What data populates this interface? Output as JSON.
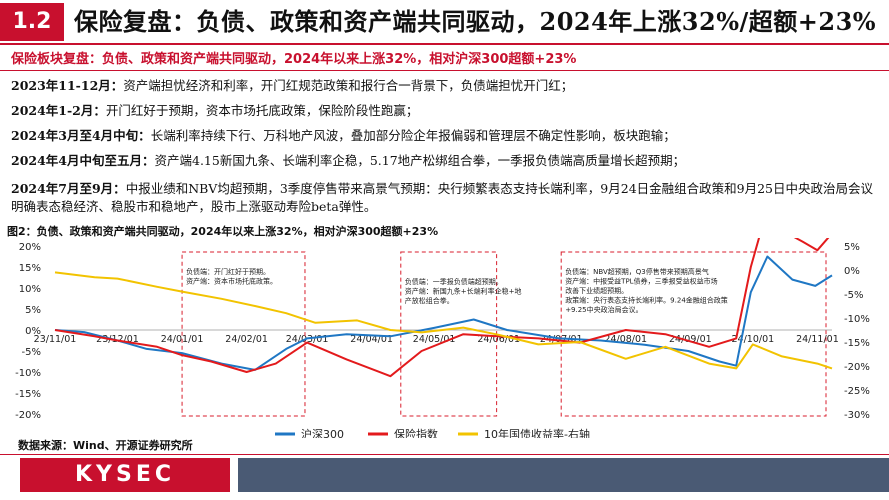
{
  "header": {
    "section_number": "1.2",
    "title": "保险复盘：负债、政策和资产端共同驱动，2024年上涨32%/超额+23%"
  },
  "subtitle": "保险板块复盘：负债、政策和资产端共同驱动，2024年以来上涨32%，相对沪深300超额+23%",
  "paragraphs": [
    {
      "period": "2023年11-12月：",
      "text": "资产端担忧经济和利率，开门红规范政策和报行合一背景下，负债端担忧开门红；"
    },
    {
      "period": "2024年1-2月：",
      "text": "开门红好于预期，资本市场托底政策，保险阶段性跑赢；"
    },
    {
      "period": "2024年3月至4月中旬：",
      "text": "长端利率持续下行、万科地产风波，叠加部分险企年报偏弱和管理层不确定性影响，板块跑输；"
    },
    {
      "period": "2024年4月中旬至五月：",
      "text": "资产端4.15新国九条、长端利率企稳，5.17地产松绑组合拳，一季报负债端高质量增长超预期；"
    },
    {
      "period": "2024年7月至9月：",
      "text": "中报业绩和NBV均超预期，3季度停售带来高景气预期：央行频繁表态支持长端利率，9月24日金融组合政策和9月25日中央政治局会议明确表态稳经济、稳股市和稳地产，股市上涨驱动寿险beta弹性。"
    }
  ],
  "chart_data": {
    "type": "line",
    "title": "图2：负债、政策和资产端共同驱动，2024年以来上涨32%，相对沪深300超额+23%",
    "x_ticks": [
      "23/11/01",
      "23/12/01",
      "24/01/01",
      "24/02/01",
      "24/03/01",
      "24/04/01",
      "24/05/01",
      "24/06/01",
      "24/07/01",
      "24/08/01",
      "24/09/01",
      "24/10/01",
      "24/11/01"
    ],
    "x_range": [
      "2023-11-01",
      "2024-11-08"
    ],
    "left_axis": {
      "min": -20,
      "max": 20,
      "ticks": [
        "20%",
        "15%",
        "10%",
        "5%",
        "0%",
        "-5%",
        "-10%",
        "-15%",
        "-20%"
      ]
    },
    "right_axis": {
      "min": -30,
      "max": 5,
      "ticks": [
        "5%",
        "0%",
        "-5%",
        "-10%",
        "-15%",
        "-20%",
        "-25%",
        "-30%"
      ]
    },
    "series": [
      {
        "name": "沪深300",
        "axis": "left",
        "color": "#1f77c4",
        "points": [
          [
            "2023-11-01",
            0
          ],
          [
            "2023-11-15",
            -0.5
          ],
          [
            "2023-12-01",
            -2.5
          ],
          [
            "2023-12-15",
            -4.5
          ],
          [
            "2024-01-01",
            -5.5
          ],
          [
            "2024-01-20",
            -8
          ],
          [
            "2024-02-05",
            -9.5
          ],
          [
            "2024-02-20",
            -4.5
          ],
          [
            "2024-03-01",
            -2
          ],
          [
            "2024-03-20",
            -1
          ],
          [
            "2024-04-10",
            -1.5
          ],
          [
            "2024-05-01",
            0.5
          ],
          [
            "2024-05-20",
            2.5
          ],
          [
            "2024-06-05",
            0
          ],
          [
            "2024-06-30",
            -2
          ],
          [
            "2024-07-20",
            -2.5
          ],
          [
            "2024-08-10",
            -3.5
          ],
          [
            "2024-08-31",
            -5
          ],
          [
            "2024-09-15",
            -7.5
          ],
          [
            "2024-09-23",
            -8.5
          ],
          [
            "2024-09-30",
            9
          ],
          [
            "2024-10-08",
            17.5
          ],
          [
            "2024-10-20",
            12
          ],
          [
            "2024-10-31",
            10.5
          ],
          [
            "2024-11-08",
            13
          ]
        ]
      },
      {
        "name": "保险指数",
        "axis": "left",
        "color": "#e31a1c",
        "points": [
          [
            "2023-11-01",
            0
          ],
          [
            "2023-11-20",
            -1.5
          ],
          [
            "2023-12-01",
            -2.5
          ],
          [
            "2023-12-20",
            -4
          ],
          [
            "2024-01-01",
            -6
          ],
          [
            "2024-01-15",
            -7.5
          ],
          [
            "2024-02-01",
            -10
          ],
          [
            "2024-02-15",
            -8
          ],
          [
            "2024-03-01",
            -3
          ],
          [
            "2024-03-20",
            -7
          ],
          [
            "2024-04-10",
            -11
          ],
          [
            "2024-04-25",
            -5
          ],
          [
            "2024-05-15",
            -1
          ],
          [
            "2024-05-31",
            -1.5
          ],
          [
            "2024-06-20",
            -2
          ],
          [
            "2024-07-10",
            -3
          ],
          [
            "2024-08-01",
            0
          ],
          [
            "2024-08-20",
            -1
          ],
          [
            "2024-09-10",
            -4
          ],
          [
            "2024-09-23",
            -2
          ],
          [
            "2024-09-30",
            15
          ],
          [
            "2024-10-08",
            29
          ],
          [
            "2024-10-14",
            24
          ],
          [
            "2024-10-25",
            21
          ],
          [
            "2024-11-01",
            19
          ],
          [
            "2024-11-08",
            23
          ]
        ]
      },
      {
        "name": "10年国债收益率-右轴",
        "axis": "right",
        "color": "#f2c300",
        "points": [
          [
            "2023-11-01",
            -0.5
          ],
          [
            "2023-11-20",
            -1.5
          ],
          [
            "2023-12-01",
            -1.8
          ],
          [
            "2023-12-20",
            -3.5
          ],
          [
            "2024-01-01",
            -4.5
          ],
          [
            "2024-01-20",
            -6
          ],
          [
            "2024-02-05",
            -7.5
          ],
          [
            "2024-02-20",
            -9
          ],
          [
            "2024-03-05",
            -11
          ],
          [
            "2024-03-25",
            -10.5
          ],
          [
            "2024-04-10",
            -12.5
          ],
          [
            "2024-04-25",
            -13
          ],
          [
            "2024-05-15",
            -12
          ],
          [
            "2024-06-01",
            -13.5
          ],
          [
            "2024-06-20",
            -15.5
          ],
          [
            "2024-07-10",
            -15
          ],
          [
            "2024-08-01",
            -18.5
          ],
          [
            "2024-08-20",
            -16
          ],
          [
            "2024-09-10",
            -19.5
          ],
          [
            "2024-09-23",
            -20.5
          ],
          [
            "2024-10-01",
            -15.5
          ],
          [
            "2024-10-15",
            -18
          ],
          [
            "2024-11-01",
            -19.5
          ],
          [
            "2024-11-08",
            -20.5
          ]
        ]
      }
    ],
    "highlight_ranges": [
      [
        "2024-01-01",
        "2024-02-29"
      ],
      [
        "2024-04-15",
        "2024-05-31"
      ],
      [
        "2024-07-01",
        "2024-11-10"
      ]
    ],
    "annotations": [
      {
        "lines": [
          "负债端：开门红好于预期。",
          "资产端：资本市场托底政策。"
        ]
      },
      {
        "lines": [
          "负债端：一季报负债端超预期。",
          "资产端：新国九条+长端利率企稳+地",
          "产放松组合拳。"
        ]
      },
      {
        "lines": [
          "负债端：NBV超预期，Q3停售带来预期高景气",
          "资产端：中报受益TPL债券，三季报受益权益市场",
          "改善下业绩超预期。",
          "政策端：央行表态支持长端利率。9.24金融组合政策",
          "+9.25中央政治局会议。"
        ]
      }
    ]
  },
  "source": "数据来源：Wind、开源证券研究所",
  "footer": {
    "logo": "KYSEC"
  }
}
